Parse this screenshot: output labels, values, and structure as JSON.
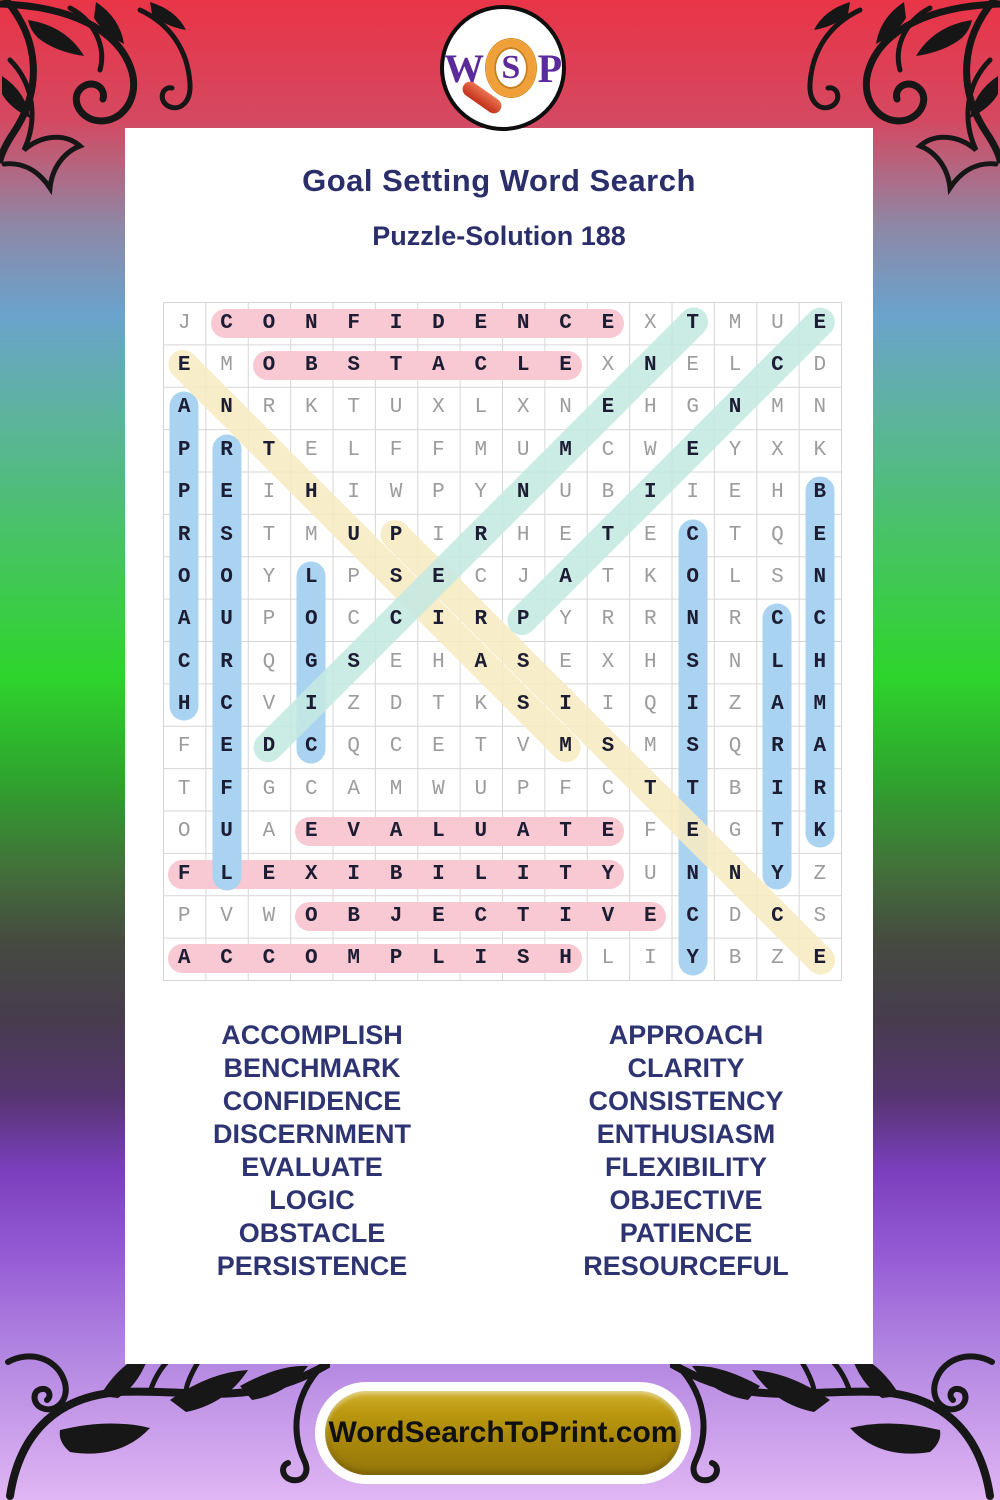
{
  "header": {
    "title": "Goal Setting Word Search",
    "subtitle": "Puzzle-Solution 188"
  },
  "logo": {
    "letters": [
      "W",
      "S",
      "P"
    ],
    "magnifier_icon": "magnifier-icon"
  },
  "grid": {
    "size": 16,
    "rows": [
      "JCONFIDENCEXTMUE",
      "EMOBSTACLEXNELCD",
      "ANRKTUXLXNEHGNMN",
      "PRTELFFMUMCWEYXK",
      "PEIHIWPYNUBIIEHB",
      "RSTMUPIRHETECTQE",
      "OOYLPSECJATKOLSN",
      "AUPOCCIRPYRRNRCC",
      "CRQGSEHASEXHSNLH",
      "HCVIZDTKSIIQIZAM",
      "FEDCQCETVMSMSQRA",
      "TFGCAMWUPFCTTBIR",
      "OUAEVALUATEFEGTK",
      "FLEXIBILITYUNNYZ",
      "PVWOBJECTIVECDCS",
      "ACCOMPLISHLIYBZE"
    ]
  },
  "solutions": [
    {
      "word": "CONFIDENCE",
      "r1": 1,
      "c1": 2,
      "r2": 1,
      "c2": 11,
      "color": "pink"
    },
    {
      "word": "OBSTACLE",
      "r1": 2,
      "c1": 3,
      "r2": 2,
      "c2": 10,
      "color": "pink"
    },
    {
      "word": "EVALUATE",
      "r1": 13,
      "c1": 4,
      "r2": 13,
      "c2": 11,
      "color": "pink"
    },
    {
      "word": "FLEXIBILITY",
      "r1": 14,
      "c1": 1,
      "r2": 14,
      "c2": 11,
      "color": "pink"
    },
    {
      "word": "OBJECTIVE",
      "r1": 15,
      "c1": 4,
      "r2": 15,
      "c2": 12,
      "color": "pink"
    },
    {
      "word": "ACCOMPLISH",
      "r1": 16,
      "c1": 1,
      "r2": 16,
      "c2": 10,
      "color": "pink"
    },
    {
      "word": "APPROACH",
      "r1": 3,
      "c1": 1,
      "r2": 10,
      "c2": 1,
      "color": "blue"
    },
    {
      "word": "RESOURCEFUL",
      "r1": 4,
      "c1": 2,
      "r2": 14,
      "c2": 2,
      "color": "blue"
    },
    {
      "word": "LOGIC",
      "r1": 7,
      "c1": 4,
      "r2": 11,
      "c2": 4,
      "color": "blue"
    },
    {
      "word": "CONSISTENCY",
      "r1": 6,
      "c1": 13,
      "r2": 16,
      "c2": 13,
      "color": "blue"
    },
    {
      "word": "CLARITY",
      "r1": 8,
      "c1": 15,
      "r2": 14,
      "c2": 15,
      "color": "blue"
    },
    {
      "word": "BENCHMARK",
      "r1": 5,
      "c1": 16,
      "r2": 13,
      "c2": 16,
      "color": "blue"
    },
    {
      "word": "ENTHUSIASM",
      "r1": 2,
      "c1": 1,
      "r2": 11,
      "c2": 10,
      "color": "yellow"
    },
    {
      "word": "PERSISTENCE",
      "r1": 6,
      "c1": 6,
      "r2": 16,
      "c2": 16,
      "color": "yellow"
    },
    {
      "word": "DISCERNMENT",
      "r1": 11,
      "c1": 3,
      "r2": 1,
      "c2": 13,
      "color": "teal"
    },
    {
      "word": "PATIENCE",
      "r1": 8,
      "c1": 9,
      "r2": 1,
      "c2": 16,
      "color": "teal"
    }
  ],
  "highlight_colors": {
    "pink": "#f8c8d3",
    "blue": "#a9d3f1",
    "yellow": "#f7ebc2",
    "teal": "#c4e8e1"
  },
  "word_list": {
    "left": [
      "ACCOMPLISH",
      "BENCHMARK",
      "CONFIDENCE",
      "DISCERNMENT",
      "EVALUATE",
      "LOGIC",
      "OBSTACLE",
      "PERSISTENCE"
    ],
    "right": [
      "APPROACH",
      "CLARITY",
      "CONSISTENCY",
      "ENTHUSIASM",
      "FLEXIBILITY",
      "OBJECTIVE",
      "PATIENCE",
      "RESOURCEFUL"
    ]
  },
  "footer": {
    "site_label": "WordSearchToPrint.com"
  }
}
